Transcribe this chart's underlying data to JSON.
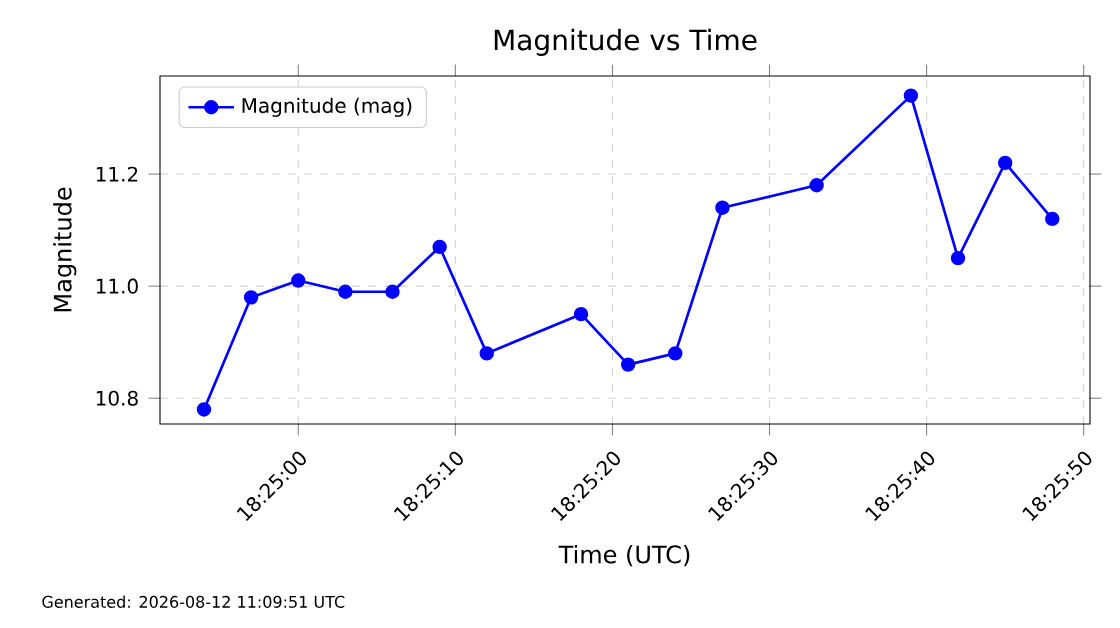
{
  "chart_data": {
    "type": "line",
    "title": "Magnitude vs Time",
    "xlabel": "Time (UTC)",
    "ylabel": "Magnitude",
    "x": [
      18.415,
      18.415833,
      18.416667,
      18.4175,
      18.418333,
      18.419167,
      18.42,
      18.421667,
      18.4225,
      18.423333,
      18.424167,
      18.425833,
      18.4275,
      18.428333,
      18.429167,
      18.43
    ],
    "series": [
      {
        "name": "Magnitude (mag)",
        "color": "#0000ff",
        "values": [
          10.78,
          10.98,
          11.01,
          10.99,
          10.99,
          11.07,
          10.88,
          10.95,
          10.86,
          10.88,
          11.14,
          11.18,
          11.34,
          11.05,
          11.22,
          11.12
        ]
      }
    ],
    "xlim": [
      18.414222,
      18.430667
    ],
    "ylim": [
      10.754,
      11.375
    ],
    "xticks": [
      {
        "value": 18.416667,
        "label": "18:25:00"
      },
      {
        "value": 18.419444,
        "label": "18:25:10"
      },
      {
        "value": 18.422222,
        "label": "18:25:20"
      },
      {
        "value": 18.425,
        "label": "18:25:30"
      },
      {
        "value": 18.427778,
        "label": "18:25:40"
      },
      {
        "value": 18.430556,
        "label": "18:25:50"
      }
    ],
    "yticks": [
      {
        "value": 10.8,
        "label": "10.8"
      },
      {
        "value": 11.0,
        "label": "11.0"
      },
      {
        "value": 11.2,
        "label": "11.2"
      }
    ],
    "grid": true,
    "legend": "top left",
    "marker": "circle",
    "line_style": "solid",
    "annotations": [
      "Generated: 2026-08-12 11:09:51 UTC"
    ]
  }
}
